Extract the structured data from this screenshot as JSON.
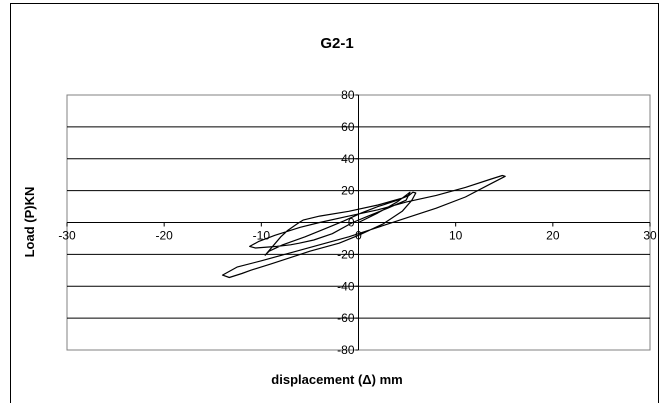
{
  "chart_data": {
    "type": "line",
    "title": "G2-1",
    "xlabel": "displacement (Δ) mm",
    "ylabel": "Load (P)KN",
    "xlim": [
      -30,
      30
    ],
    "ylim": [
      -80,
      80
    ],
    "x_ticks": [
      "-30",
      "-20",
      "-10",
      "0",
      "10",
      "20",
      "30"
    ],
    "y_ticks": [
      "80",
      "60",
      "40",
      "20",
      "0",
      "-20",
      "-40",
      "-60",
      "-80"
    ],
    "grid": "horizontal",
    "legend": "none",
    "series": [
      {
        "color": "#000000",
        "points": [
          [
            0,
            0
          ],
          [
            2,
            6
          ],
          [
            4,
            13
          ],
          [
            5.3,
            19
          ],
          [
            4.9,
            14
          ],
          [
            3,
            9
          ],
          [
            1,
            4
          ],
          [
            -0.6,
            0
          ],
          [
            -2.7,
            -7
          ],
          [
            -4.6,
            -11
          ],
          [
            -6.1,
            -13
          ],
          [
            -7,
            -14
          ],
          [
            -8.4,
            -15
          ],
          [
            -10.6,
            -16
          ],
          [
            -11.2,
            -15
          ],
          [
            -10.3,
            -12
          ],
          [
            -8.6,
            -8
          ],
          [
            -6,
            -3
          ],
          [
            -4,
            0
          ],
          [
            -1,
            4
          ],
          [
            2,
            8
          ],
          [
            5,
            13
          ],
          [
            8,
            17
          ],
          [
            11,
            22
          ],
          [
            13.5,
            27
          ],
          [
            14.8,
            29.5
          ],
          [
            15.1,
            29
          ],
          [
            13.5,
            24
          ],
          [
            11,
            16
          ],
          [
            8,
            9
          ],
          [
            5,
            3
          ],
          [
            2,
            -3
          ],
          [
            -1,
            -9
          ],
          [
            -4,
            -14
          ],
          [
            -7,
            -19
          ],
          [
            -10,
            -24
          ],
          [
            -12.5,
            -28
          ],
          [
            -14,
            -33
          ],
          [
            -13.3,
            -34.5
          ],
          [
            -12,
            -32
          ],
          [
            -11.1,
            -30
          ],
          [
            -9,
            -26
          ],
          [
            -7,
            -22
          ],
          [
            -5,
            -18
          ],
          [
            -2,
            -13
          ],
          [
            0,
            -8
          ],
          [
            2.5,
            -1
          ],
          [
            4.5,
            7
          ],
          [
            5.5,
            14
          ],
          [
            5.9,
            18.5
          ],
          [
            5.6,
            19
          ],
          [
            5.2,
            17
          ],
          [
            4,
            14
          ],
          [
            2,
            10
          ],
          [
            0.3,
            6
          ],
          [
            -1.5,
            1
          ],
          [
            -3.5,
            -4
          ],
          [
            -5.5,
            -9
          ],
          [
            -7.8,
            -14
          ],
          [
            -9.2,
            -18
          ],
          [
            -9.6,
            -20.5
          ],
          [
            -9.4,
            -19
          ],
          [
            -8.7,
            -14
          ],
          [
            -8,
            -9
          ],
          [
            -7.3,
            -5
          ],
          [
            -6.6,
            -2
          ],
          [
            -6.1,
            0
          ],
          [
            -5.7,
            1.5
          ],
          [
            -4,
            4
          ],
          [
            -1,
            7
          ],
          [
            2,
            11
          ],
          [
            4.6,
            15.5
          ],
          [
            5.1,
            17
          ]
        ]
      }
    ]
  }
}
